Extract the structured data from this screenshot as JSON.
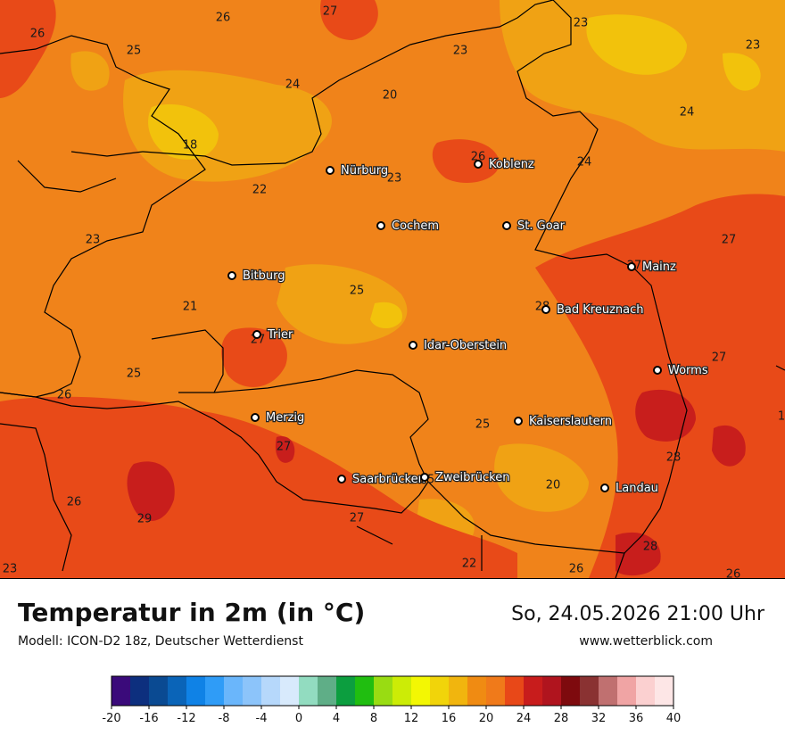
{
  "header": {
    "title": "Temperatur in 2m (in °C)",
    "model": "Modell: ICON-D2 18z, Deutscher Wetterdienst",
    "datetime": "So, 24.05.2026 21:00 Uhr",
    "website": "www.wetterblick.com"
  },
  "cities": [
    {
      "name": "Nürburg"
    },
    {
      "name": "Koblenz"
    },
    {
      "name": "Cochem"
    },
    {
      "name": "St. Goar"
    },
    {
      "name": "Mainz"
    },
    {
      "name": "Bitburg"
    },
    {
      "name": "Bad Kreuznach"
    },
    {
      "name": "Trier"
    },
    {
      "name": "Idar-Oberstein"
    },
    {
      "name": "Worms"
    },
    {
      "name": "Merzig"
    },
    {
      "name": "Kaiserslautern"
    },
    {
      "name": "Saarbrücken"
    },
    {
      "name": "Zweibrücken"
    },
    {
      "name": "Landau"
    }
  ],
  "value_labels": [
    "26",
    "27",
    "26",
    "25",
    "23",
    "23",
    "23",
    "24",
    "20",
    "24",
    "18",
    "23",
    "26",
    "24",
    "22",
    "23",
    "27",
    "25",
    "21",
    "28",
    "27",
    "27",
    "26",
    "25",
    "27",
    "28",
    "26",
    "29",
    "27",
    "25",
    "20",
    "28",
    "22",
    "26",
    "23",
    "26",
    "25",
    "27",
    "1"
  ],
  "legend": {
    "ticks": [
      "-20",
      "-16",
      "-12",
      "-8",
      "-4",
      "0",
      "4",
      "8",
      "12",
      "16",
      "20",
      "24",
      "28",
      "32",
      "36",
      "40"
    ],
    "colors": [
      "#3a0a7a",
      "#0d2f7e",
      "#0a4a92",
      "#0a64b8",
      "#0f82e6",
      "#2f9cf7",
      "#6ab6fb",
      "#8cc4fa",
      "#b6d8fb",
      "#d8eafc",
      "#92dcc0",
      "#5fae87",
      "#0c9e3f",
      "#20be10",
      "#99dc12",
      "#ccec06",
      "#f3f703",
      "#f1d40a",
      "#f1b50e",
      "#f08b12",
      "#f07a1a",
      "#e84818",
      "#c81c1c",
      "#b0141e",
      "#7e0a0e",
      "#8a3232",
      "#c07070",
      "#f0a4a4",
      "#fbd0d0",
      "#fde6e6"
    ]
  }
}
